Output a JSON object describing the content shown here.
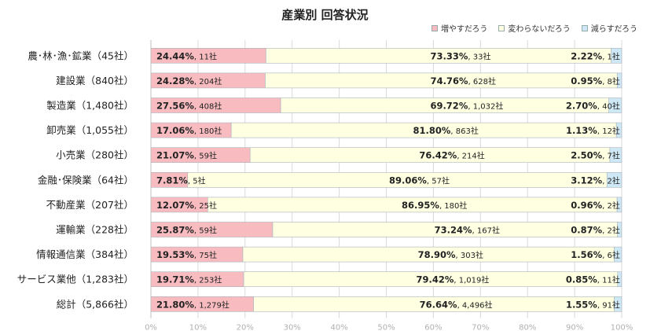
{
  "colors": {
    "increase": "#f8bcc0",
    "same": "#ffffe1",
    "decrease": "#cfe8f6",
    "border": "#a9b3bd",
    "grid": "#d9d9d9"
  },
  "chart_data": {
    "type": "bar",
    "orientation": "horizontal",
    "stacked": true,
    "percent": true,
    "title": "産業別 回答状況",
    "legend_position": "top-right",
    "grid": true,
    "xlim": [
      0,
      100
    ],
    "x_ticks": [
      "0%",
      "10%",
      "20%",
      "30%",
      "40%",
      "50%",
      "60%",
      "70%",
      "80%",
      "90%",
      "100%"
    ],
    "categories": [
      "農･林･漁･鉱業（45社）",
      "建設業（840社）",
      "製造業（1,480社）",
      "卸売業（1,055社）",
      "小売業（280社）",
      "金融･保険業（64社）",
      "不動産業（207社）",
      "運輸業（228社）",
      "情報通信業（384社）",
      "サービス業他（1,283社）",
      "総計（5,866社）"
    ],
    "series": [
      {
        "name": "増やすだろう",
        "values": [
          24.44,
          24.28,
          27.56,
          17.06,
          21.07,
          7.81,
          12.07,
          25.87,
          19.53,
          19.71,
          21.8
        ],
        "pct_labels": [
          "24.44%",
          "24.28%",
          "27.56%",
          "17.06%",
          "21.07%",
          "7.81%",
          "12.07%",
          "25.87%",
          "19.53%",
          "19.71%",
          "21.80%"
        ],
        "counts": [
          "11社",
          "204社",
          "408社",
          "180社",
          "59社",
          "5社",
          "25社",
          "59社",
          "75社",
          "253社",
          "1,279社"
        ]
      },
      {
        "name": "変わらないだろう",
        "values": [
          73.33,
          74.76,
          69.72,
          81.8,
          76.42,
          89.06,
          86.95,
          73.24,
          78.9,
          79.42,
          76.64
        ],
        "pct_labels": [
          "73.33%",
          "74.76%",
          "69.72%",
          "81.80%",
          "76.42%",
          "89.06%",
          "86.95%",
          "73.24%",
          "78.90%",
          "79.42%",
          "76.64%"
        ],
        "counts": [
          "33社",
          "628社",
          "1,032社",
          "863社",
          "214社",
          "57社",
          "180社",
          "167社",
          "303社",
          "1,019社",
          "4,496社"
        ]
      },
      {
        "name": "減らすだろう",
        "values": [
          2.22,
          0.95,
          2.7,
          1.13,
          2.5,
          3.12,
          0.96,
          0.87,
          1.56,
          0.85,
          1.55
        ],
        "pct_labels": [
          "2.22%",
          "0.95%",
          "2.70%",
          "1.13%",
          "2.50%",
          "3.12%",
          "0.96%",
          "0.87%",
          "1.56%",
          "0.85%",
          "1.55%"
        ],
        "counts": [
          "1社",
          "8社",
          "40社",
          "12社",
          "7社",
          "2社",
          "2社",
          "2社",
          "6社",
          "11社",
          "91社"
        ]
      }
    ]
  }
}
